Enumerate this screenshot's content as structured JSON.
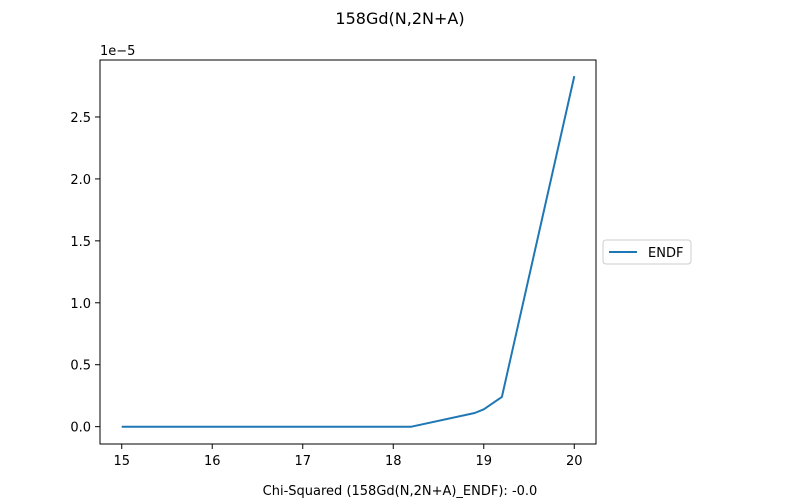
{
  "chart_data": {
    "type": "line",
    "title": "158Gd(N,2N+A)",
    "xlabel": "Chi-Squared (158Gd(N,2N+A)_ENDF): -0.0",
    "ylabel": "",
    "y_offset_label": "1e−5",
    "xlim": [
      14.76,
      20.24
    ],
    "ylim": [
      -1.4e-06,
      2.96e-05
    ],
    "x_ticks": [
      15,
      16,
      17,
      18,
      19,
      20
    ],
    "x_tick_labels": [
      "15",
      "16",
      "17",
      "18",
      "19",
      "20"
    ],
    "y_ticks": [
      0,
      5e-06,
      1e-05,
      1.5e-05,
      2e-05,
      2.5e-05
    ],
    "y_tick_labels": [
      "0.0",
      "0.5",
      "1.0",
      "1.5",
      "2.0",
      "2.5"
    ],
    "grid": false,
    "legend_position": "center-right-outside",
    "series": [
      {
        "name": "ENDF",
        "color": "#1f77b4",
        "x": [
          15.0,
          18.2,
          18.9,
          19.0,
          19.2,
          20.0
        ],
        "y": [
          0.0,
          0.0,
          1.1e-06,
          1.4e-06,
          2.4e-06,
          2.83e-05
        ]
      }
    ]
  }
}
